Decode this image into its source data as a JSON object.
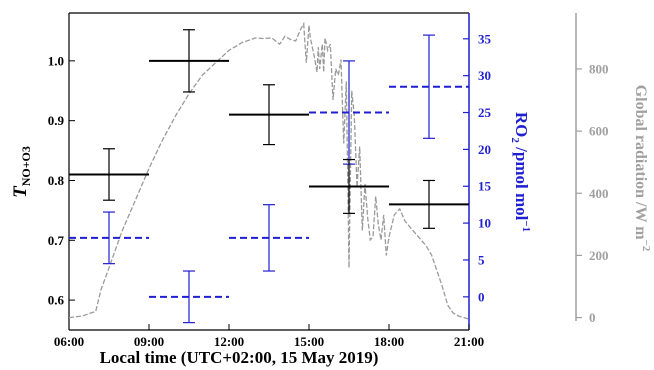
{
  "chart_data": {
    "type": "line",
    "xlabel": "Local time (UTC+02:00, 15 May 2019)",
    "xlim": [
      6,
      21
    ],
    "x_ticks": [
      "06:00",
      "09:00",
      "12:00",
      "15:00",
      "18:00",
      "21:00"
    ],
    "y_left": {
      "label_main": "T",
      "label_sub": "NO+O3",
      "lim": [
        0.55,
        1.08
      ],
      "ticks": [
        "0.6",
        "0.7",
        "0.8",
        "0.9",
        "1.0"
      ],
      "color": "#000000"
    },
    "y_right": {
      "label_main": "RO",
      "label_sub": "2",
      "label_rest": " /pmol mol",
      "label_sup": "−1",
      "lim": [
        -4.5,
        38.5
      ],
      "ticks": [
        "0",
        "5",
        "10",
        "15",
        "20",
        "25",
        "30",
        "35"
      ],
      "color": "#1f1fd1"
    },
    "y_far": {
      "label": "Global radiation /W m",
      "label_sup": "−2",
      "lim": [
        -40,
        980
      ],
      "ticks": [
        "0",
        "200",
        "400",
        "600",
        "800"
      ],
      "color": "#a0a0a0"
    },
    "series": [
      {
        "axis": "left",
        "style": "solid",
        "color": "#000000",
        "points": [
          {
            "x0": 6,
            "x1": 9,
            "xc": 7.5,
            "y": 0.81,
            "err": 0.043
          },
          {
            "x0": 9,
            "x1": 12,
            "xc": 10.5,
            "y": 1.0,
            "err": 0.052
          },
          {
            "x0": 12,
            "x1": 15,
            "xc": 13.5,
            "y": 0.91,
            "err": 0.05
          },
          {
            "x0": 15,
            "x1": 18,
            "xc": 16.5,
            "y": 0.79,
            "err": 0.045
          },
          {
            "x0": 18,
            "x1": 21,
            "xc": 19.5,
            "y": 0.76,
            "err": 0.04
          }
        ]
      },
      {
        "axis": "right",
        "style": "dashed",
        "color": "#1f1fd1",
        "points": [
          {
            "x0": 6,
            "x1": 9,
            "xc": 7.5,
            "y": 8,
            "err": 3.5
          },
          {
            "x0": 9,
            "x1": 12,
            "xc": 10.5,
            "y": 0,
            "err": 3.5
          },
          {
            "x0": 12,
            "x1": 15,
            "xc": 13.5,
            "y": 8,
            "err": 4.5
          },
          {
            "x0": 15,
            "x1": 18,
            "xc": 16.5,
            "y": 25,
            "err": 7
          },
          {
            "x0": 18,
            "x1": 21,
            "xc": 19.5,
            "y": 28.5,
            "err": 7
          }
        ]
      },
      {
        "axis": "far",
        "style": "dotted-dash",
        "color": "#9a9a9a",
        "x": [
          6.0,
          6.5,
          7.0,
          7.2,
          7.5,
          8.0,
          8.5,
          9.0,
          9.5,
          10.0,
          10.5,
          11.0,
          11.5,
          12.0,
          12.5,
          13.0,
          13.3,
          13.6,
          13.9,
          14.1,
          14.3,
          14.5,
          14.7,
          14.8,
          14.9,
          15.0,
          15.05,
          15.1,
          15.2,
          15.3,
          15.35,
          15.4,
          15.5,
          15.55,
          15.6,
          15.7,
          15.8,
          15.9,
          16.0,
          16.1,
          16.2,
          16.3,
          16.4,
          16.5,
          16.6,
          16.7,
          16.8,
          16.9,
          17.0,
          17.1,
          17.2,
          17.3,
          17.4,
          17.5,
          17.6,
          17.7,
          17.8,
          17.9,
          18.0,
          18.2,
          18.4,
          18.6,
          18.8,
          19.0,
          19.2,
          19.4,
          19.6,
          19.8,
          20.0,
          20.2,
          20.4,
          20.6,
          20.8,
          21.0
        ],
        "y": [
          0,
          5,
          20,
          90,
          160,
          280,
          380,
          480,
          570,
          650,
          720,
          780,
          820,
          860,
          885,
          900,
          898,
          900,
          880,
          905,
          895,
          890,
          930,
          945,
          820,
          940,
          900,
          880,
          840,
          790,
          870,
          800,
          880,
          790,
          900,
          860,
          880,
          700,
          800,
          780,
          830,
          560,
          760,
          160,
          730,
          650,
          420,
          550,
          280,
          430,
          320,
          250,
          260,
          390,
          300,
          250,
          330,
          200,
          260,
          330,
          350,
          310,
          290,
          270,
          250,
          230,
          200,
          150,
          100,
          40,
          15,
          5,
          0,
          -5
        ]
      }
    ]
  }
}
